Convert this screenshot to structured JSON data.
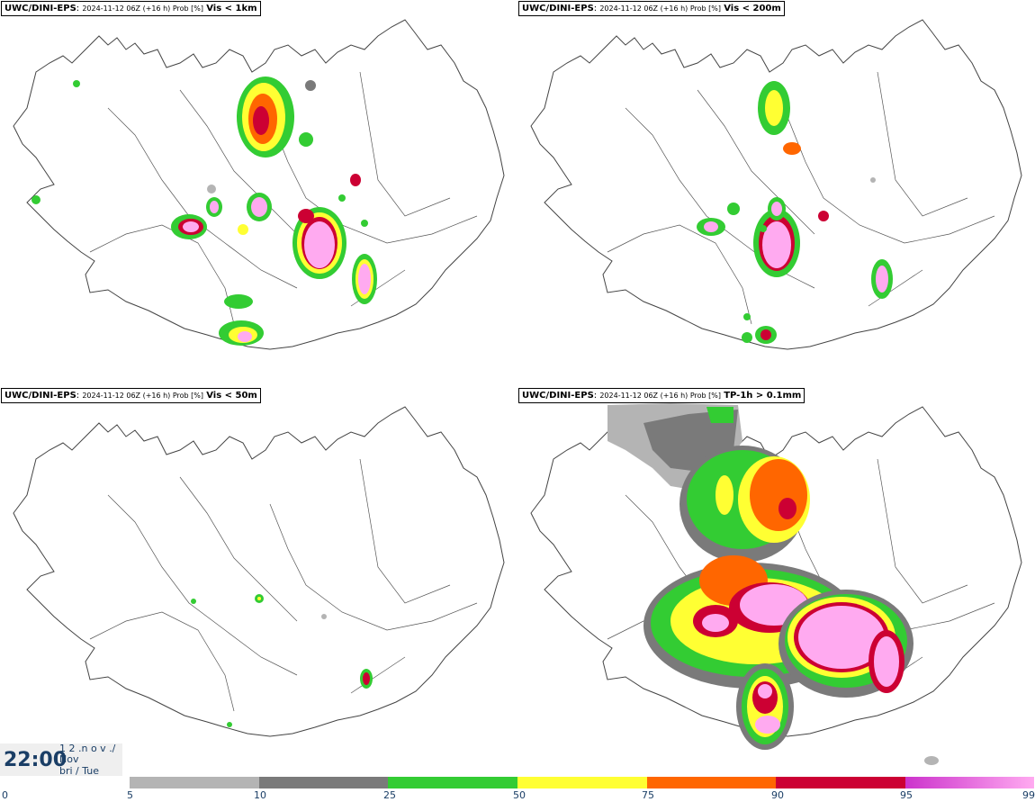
{
  "panels": [
    {
      "model": "UWC/DINI-EPS",
      "meta": "2024-11-12 06Z (+16 h) Prob [%]",
      "param": "Vis < 1km"
    },
    {
      "model": "UWC/DINI-EPS",
      "meta": "2024-11-12 06Z (+16 h) Prob [%]",
      "param": "Vis < 200m"
    },
    {
      "model": "UWC/DINI-EPS",
      "meta": "2024-11-12 06Z (+16 h) Prob [%]",
      "param": "Vis < 50m"
    },
    {
      "model": "UWC/DINI-EPS",
      "meta": "2024-11-12 06Z (+16 h) Prob [%]",
      "param": "TP-1h > 0.1mm"
    }
  ],
  "timebox": {
    "time": "22:00",
    "line1": "1 2 .n o v ./",
    "line2": "Nov",
    "line3": "bri / Tue"
  },
  "legend": {
    "ticks": [
      "0",
      "5",
      "10",
      "25",
      "50",
      "75",
      "90",
      "95",
      "99"
    ],
    "colors": [
      "#ffffff",
      "#b4b4b4",
      "#7a7a7a",
      "#33cc33",
      "#ffff33",
      "#ff6600",
      "#cc0033",
      "#cc33cc",
      "#ffaaf0"
    ]
  }
}
